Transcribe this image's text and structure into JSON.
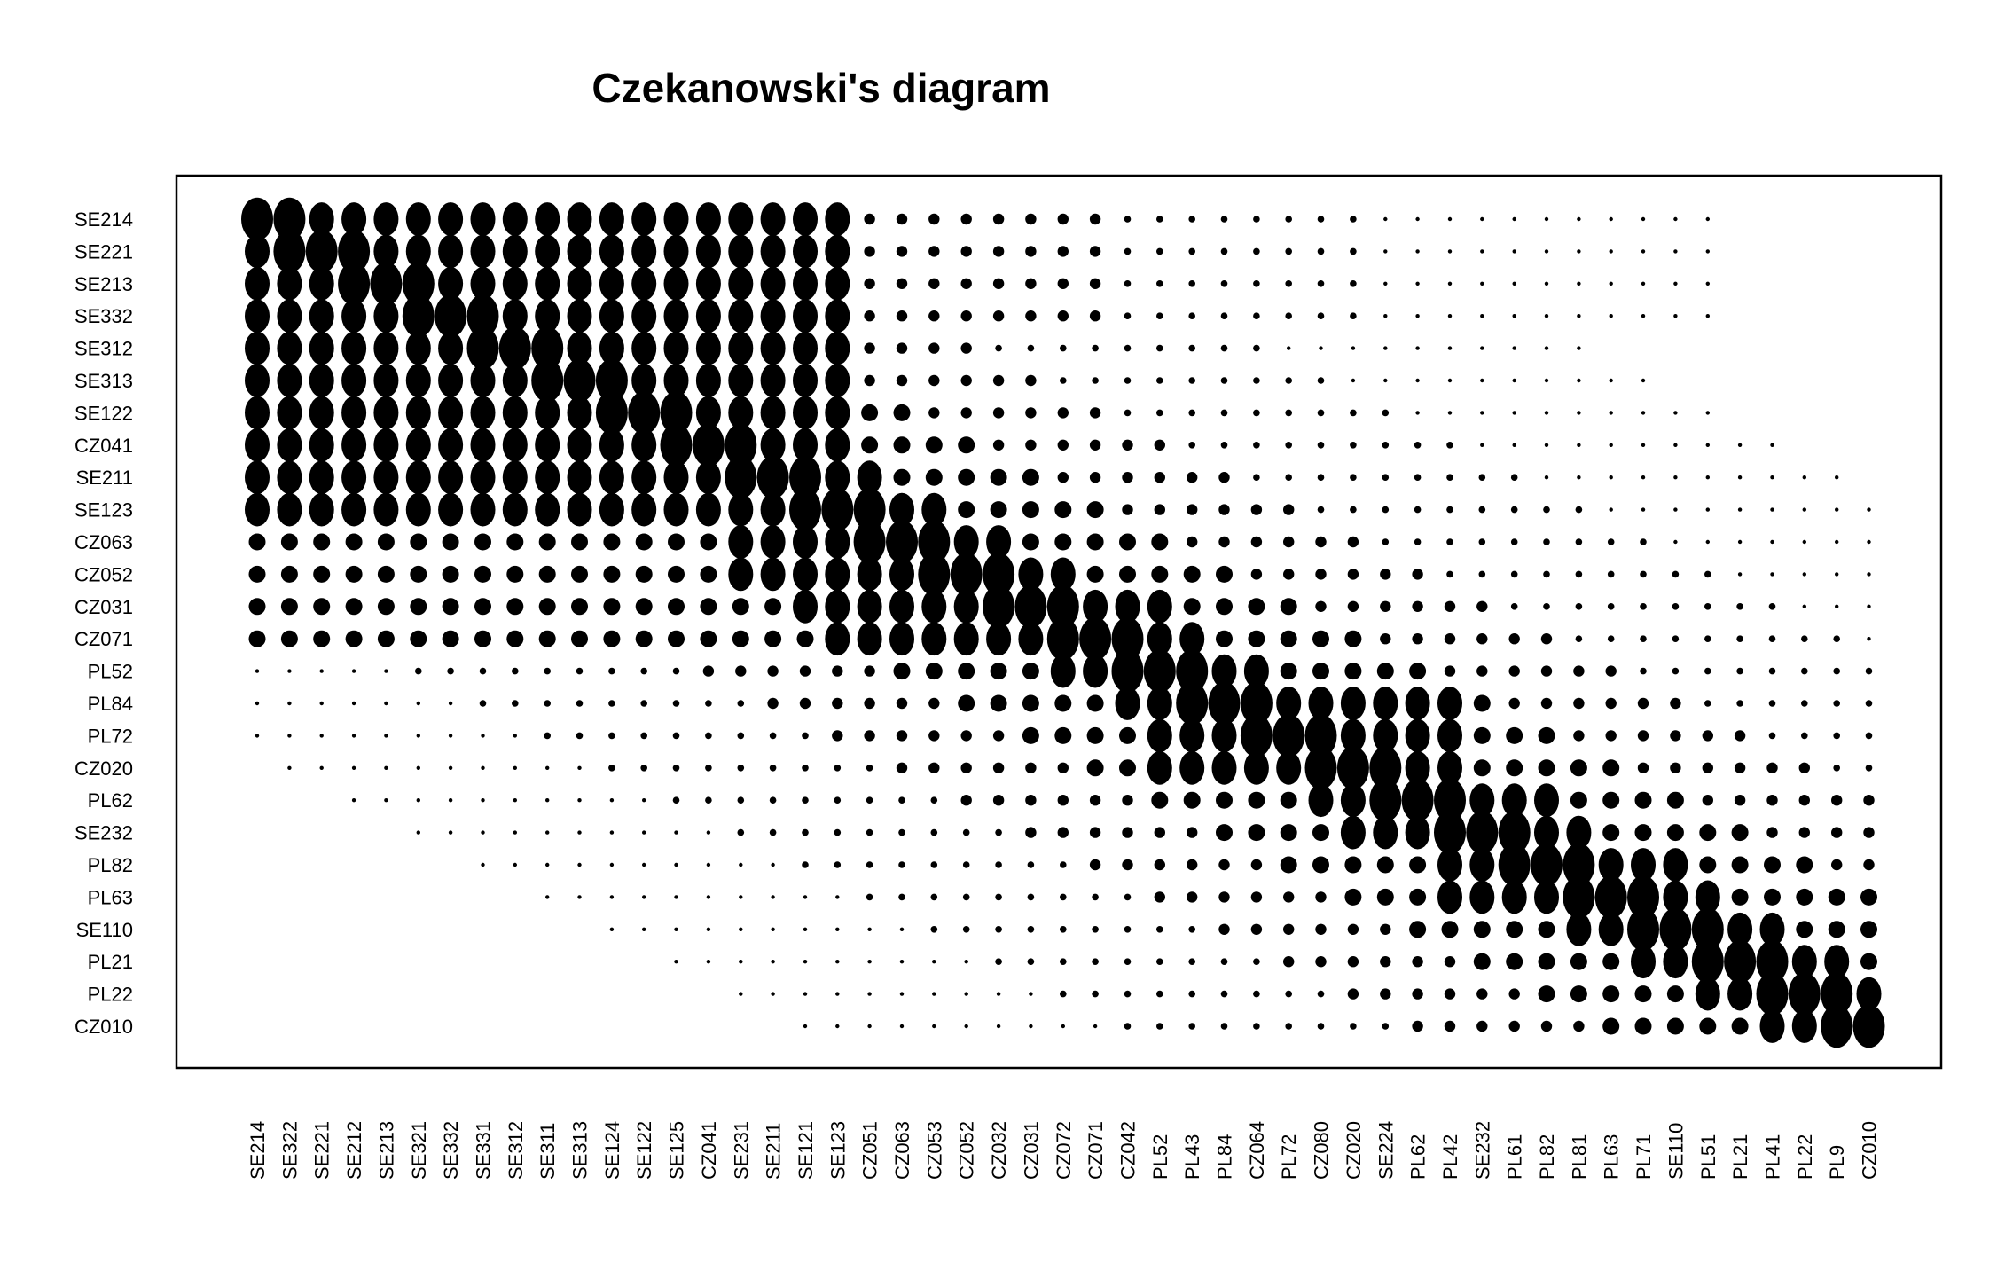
{
  "chart_data": {
    "type": "czekanowski-dot-matrix",
    "title": "Czekanowski's diagram",
    "x_labels": [
      "SE214",
      "SE322",
      "SE221",
      "SE212",
      "SE213",
      "SE321",
      "SE332",
      "SE331",
      "SE312",
      "SE311",
      "SE313",
      "SE124",
      "SE122",
      "SE125",
      "CZ041",
      "SE231",
      "SE211",
      "SE121",
      "SE123",
      "CZ051",
      "CZ063",
      "CZ053",
      "CZ052",
      "CZ032",
      "CZ031",
      "CZ072",
      "CZ071",
      "CZ042",
      "PL52",
      "PL43",
      "PL84",
      "CZ064",
      "PL72",
      "CZ080",
      "CZ020",
      "SE224",
      "PL62",
      "PL42",
      "SE232",
      "PL61",
      "PL82",
      "PL81",
      "PL63",
      "PL71",
      "SE110",
      "PL51",
      "PL21",
      "PL41",
      "PL22",
      "PL9",
      "CZ010"
    ],
    "y_labels": [
      "SE214",
      "SE221",
      "SE213",
      "SE332",
      "SE312",
      "SE313",
      "SE122",
      "CZ041",
      "SE211",
      "SE123",
      "CZ063",
      "CZ052",
      "CZ031",
      "CZ071",
      "PL52",
      "PL84",
      "PL72",
      "CZ020",
      "PL62",
      "SE232",
      "PL82",
      "PL63",
      "SE110",
      "PL21",
      "PL22",
      "CZ010"
    ],
    "symbol": "filled circles; size encodes similarity level",
    "color": "#000000",
    "grid": false,
    "legend": "none"
  }
}
